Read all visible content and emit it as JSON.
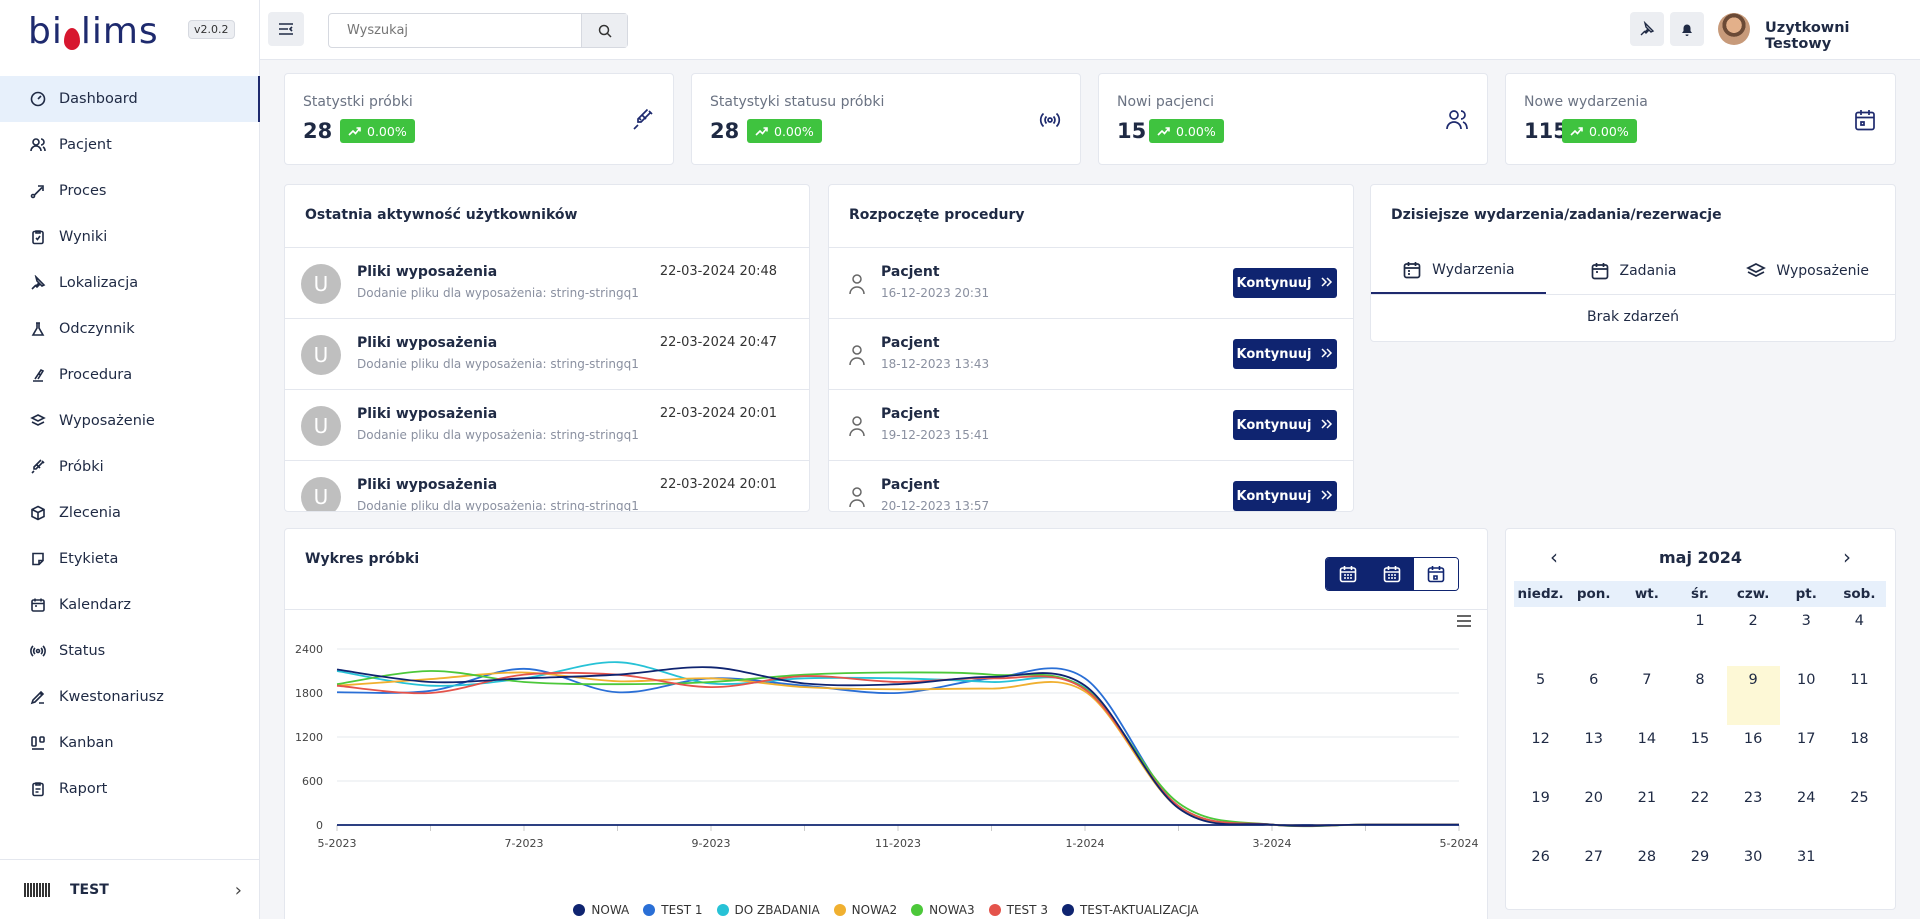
{
  "app": {
    "logo_pre": "bi",
    "logo_post": "lims",
    "version": "v2.0.2"
  },
  "sidebar": {
    "items": [
      {
        "label": "Dashboard"
      },
      {
        "label": "Pacjent"
      },
      {
        "label": "Proces"
      },
      {
        "label": "Wyniki"
      },
      {
        "label": "Lokalizacja"
      },
      {
        "label": "Odczynnik"
      },
      {
        "label": "Procedura"
      },
      {
        "label": "Wyposażenie"
      },
      {
        "label": "Próbki"
      },
      {
        "label": "Zlecenia"
      },
      {
        "label": "Etykieta"
      },
      {
        "label": "Kalendarz"
      },
      {
        "label": "Status"
      },
      {
        "label": "Kwestonariusz"
      },
      {
        "label": "Kanban"
      },
      {
        "label": "Raport"
      }
    ],
    "footer_org": "TEST"
  },
  "topbar": {
    "search_placeholder": "Wyszukaj",
    "user_name": "Uzytkowni Testowy"
  },
  "stats": [
    {
      "title": "Statystki próbki",
      "value": "28",
      "change": "0.00%"
    },
    {
      "title": "Statystyki statusu próbki",
      "value": "28",
      "change": "0.00%"
    },
    {
      "title": "Nowi pacjenci",
      "value": "15",
      "change": "0.00%"
    },
    {
      "title": "Nowe wydarzenia",
      "value": "115",
      "change": "0.00%"
    }
  ],
  "activity": {
    "title": "Ostatnia aktywność użytkowników",
    "rows": [
      {
        "avatar": "U",
        "title": "Pliki wyposażenia",
        "sub": "Dodanie pliku dla wyposażenia: string-stringq1",
        "time": "22-03-2024 20:48"
      },
      {
        "avatar": "U",
        "title": "Pliki wyposażenia",
        "sub": "Dodanie pliku dla wyposażenia: string-stringq1",
        "time": "22-03-2024 20:47"
      },
      {
        "avatar": "U",
        "title": "Pliki wyposażenia",
        "sub": "Dodanie pliku dla wyposażenia: string-stringq1",
        "time": "22-03-2024 20:01"
      },
      {
        "avatar": "U",
        "title": "Pliki wyposażenia",
        "sub": "Dodanie pliku dla wyposażenia: string-stringq1",
        "time": "22-03-2024 20:01"
      }
    ]
  },
  "procedures": {
    "title": "Rozpoczęte procedury",
    "button": "Kontynuuj",
    "rows": [
      {
        "title": "Pacjent",
        "date": "16-12-2023 20:31"
      },
      {
        "title": "Pacjent",
        "date": "18-12-2023 13:43"
      },
      {
        "title": "Pacjent",
        "date": "19-12-2023 15:41"
      },
      {
        "title": "Pacjent",
        "date": "20-12-2023 13:57"
      }
    ]
  },
  "events": {
    "title": "Dzisiejsze wydarzenia/zadania/rezerwacje",
    "tabs": [
      "Wydarzenia",
      "Zadania",
      "Wyposażenie"
    ],
    "empty": "Brak zdarzeń"
  },
  "chart_data": {
    "type": "line",
    "title": "Wykres próbki",
    "x": [
      "5-2023",
      "6-2023",
      "7-2023",
      "8-2023",
      "9-2023",
      "10-2023",
      "11-2023",
      "12-2023",
      "1-2024",
      "2-2024",
      "3-2024",
      "4-2024",
      "5-2024"
    ],
    "x_tick_labels": [
      "5-2023",
      "7-2023",
      "9-2023",
      "11-2023",
      "1-2024",
      "3-2024",
      "5-2024"
    ],
    "y_ticks": [
      0,
      600,
      1200,
      1800,
      2400
    ],
    "ylim": [
      0,
      2400
    ],
    "series": [
      {
        "name": "NOWA",
        "color": "#0f2470",
        "values": [
          0,
          0,
          0,
          0,
          0,
          0,
          0,
          0,
          0,
          0,
          0,
          0,
          0
        ]
      },
      {
        "name": "TEST 1",
        "color": "#2a6fd6",
        "values": [
          1810,
          1830,
          2130,
          1810,
          2000,
          1900,
          1800,
          2000,
          2000,
          250,
          5,
          5,
          5
        ]
      },
      {
        "name": "DO ZBADANIA",
        "color": "#27c2d6",
        "values": [
          2100,
          1900,
          2000,
          2220,
          1930,
          2000,
          2000,
          1950,
          1870,
          260,
          5,
          5,
          5
        ]
      },
      {
        "name": "NOWA2",
        "color": "#f0b030",
        "values": [
          1900,
          1990,
          2080,
          1960,
          2000,
          1880,
          1850,
          1860,
          1820,
          230,
          5,
          5,
          5
        ]
      },
      {
        "name": "NOWA3",
        "color": "#4cc83a",
        "values": [
          1920,
          2100,
          1950,
          1920,
          1950,
          2050,
          2080,
          2050,
          1860,
          300,
          5,
          5,
          5
        ]
      },
      {
        "name": "TEST 3",
        "color": "#e4534b",
        "values": [
          1900,
          1800,
          2050,
          2050,
          1880,
          2030,
          1950,
          2000,
          1850,
          260,
          5,
          5,
          5
        ]
      },
      {
        "name": "TEST-AKTUALIZACJA",
        "color": "#0f2470",
        "values": [
          2120,
          1950,
          2000,
          2050,
          2150,
          1930,
          1920,
          2020,
          1900,
          230,
          5,
          5,
          5
        ]
      }
    ]
  },
  "calendar": {
    "month": "maj 2024",
    "weekdays": [
      "niedz.",
      "pon.",
      "wt.",
      "śr.",
      "czw.",
      "pt.",
      "sob."
    ],
    "leading_blanks": 3,
    "days": 31,
    "today": 9
  }
}
